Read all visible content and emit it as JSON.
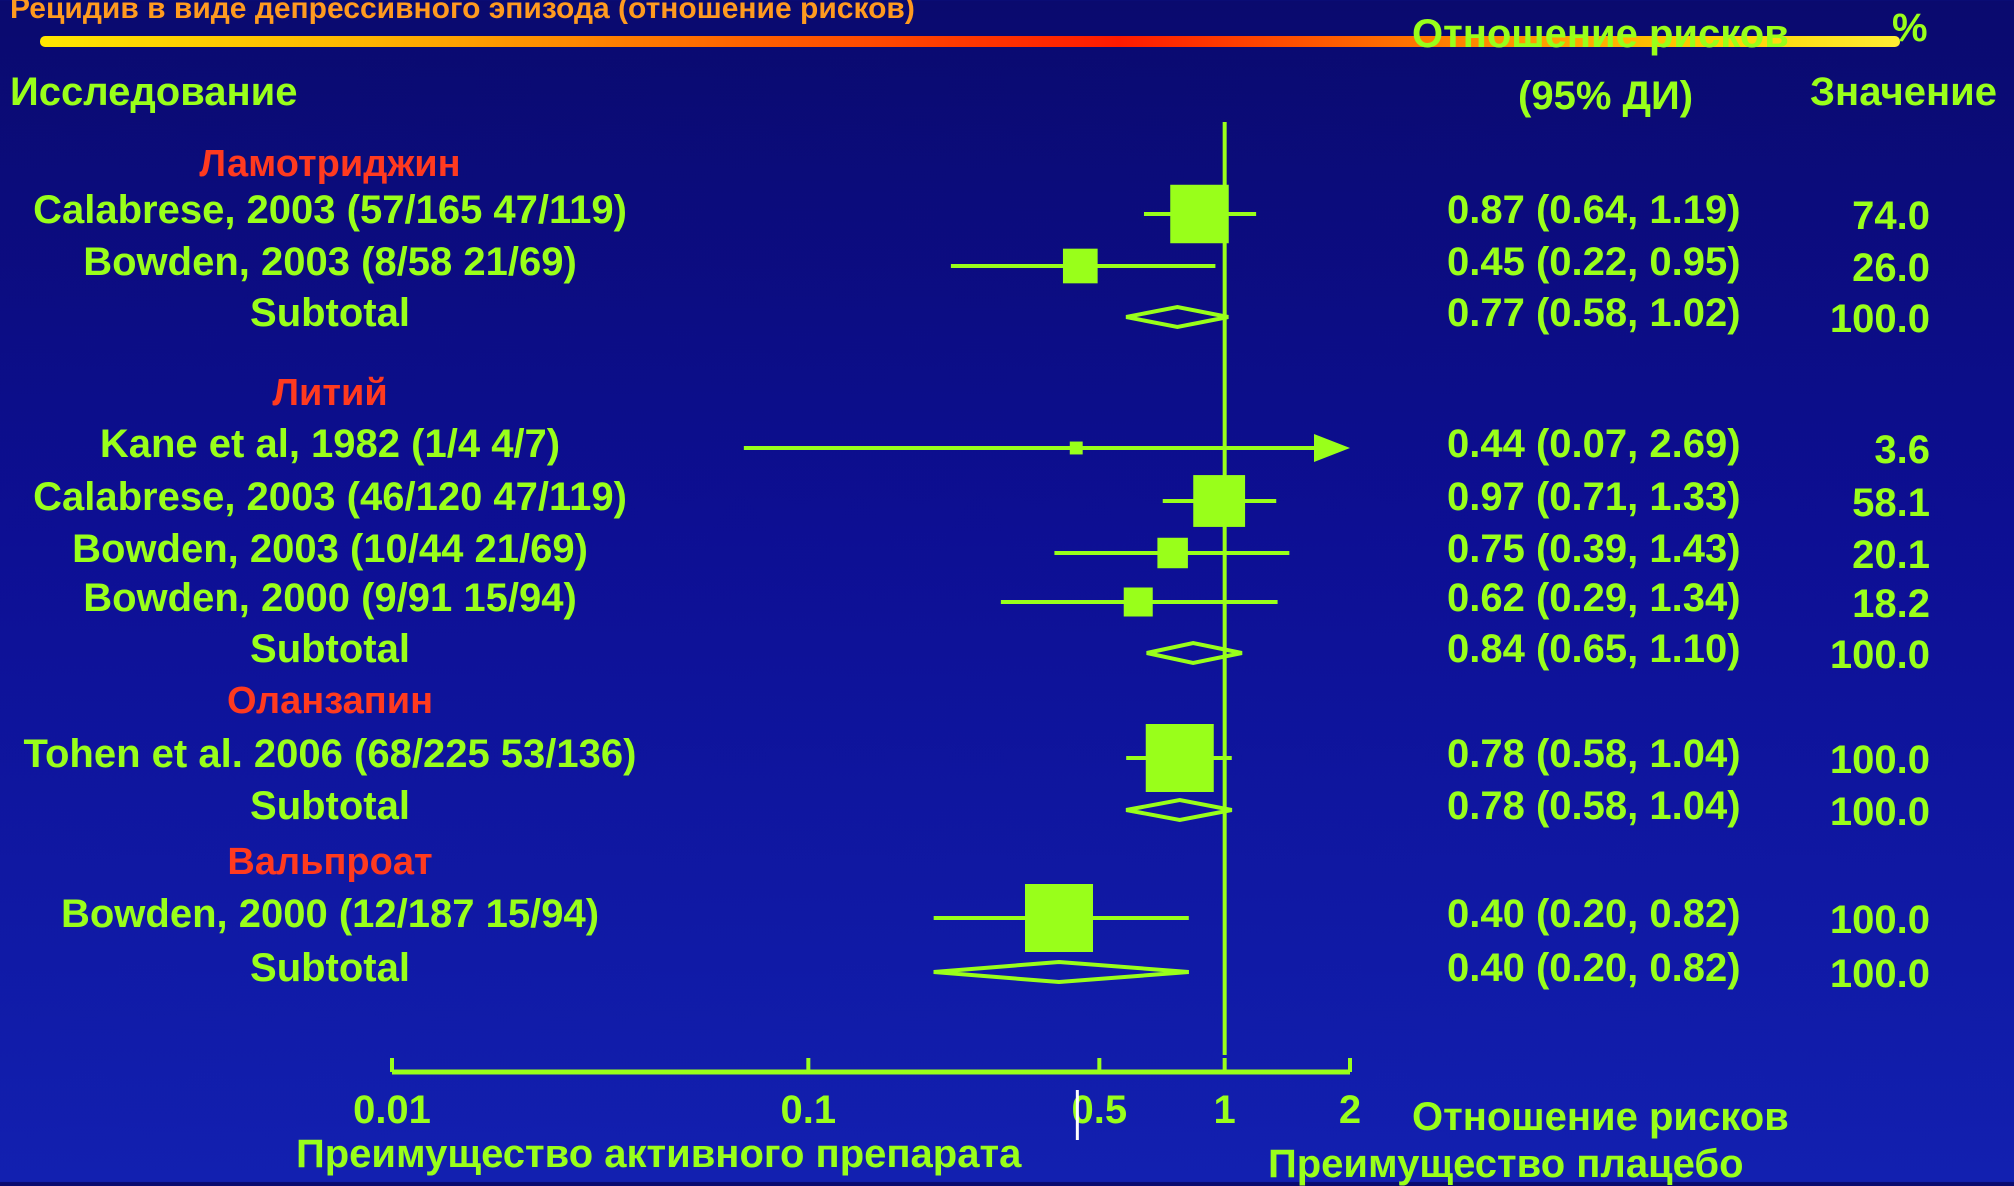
{
  "title": "Рецидив в виде депрессивного эпизода (отношение рисков)",
  "headers": {
    "study": "Исследование",
    "rr_line1": "Отношение рисков",
    "rr_line2": "(95% ДИ)",
    "pct_line1": "%",
    "pct_line2": "Значение"
  },
  "axis": {
    "label": "Отношение рисков",
    "favours_left": "Преимущество активного препарата",
    "favours_right": "Преимущество плацебо"
  },
  "colors": {
    "background": "#0d0f93",
    "marker": "#99ff1a",
    "group_title": "#ff3a1f",
    "title_text": "#ff9a1f"
  },
  "chart_data": {
    "type": "forest",
    "x_scale": "log",
    "xlim": [
      0.01,
      2
    ],
    "reference_line": 1,
    "ticks": [
      {
        "value": 0.01,
        "label": "0.01"
      },
      {
        "value": 0.1,
        "label": "0.1"
      },
      {
        "value": 0.5,
        "label": "0.5"
      },
      {
        "value": 1,
        "label": "1"
      },
      {
        "value": 2,
        "label": "2"
      }
    ],
    "rows": [
      {
        "kind": "group",
        "label": "Ламотриджин"
      },
      {
        "kind": "study",
        "label": "Calabrese, 2003 (57/165 47/119)",
        "rr": 0.87,
        "lo": 0.64,
        "hi": 1.19,
        "weight": 74.0,
        "text": "0.87 (0.64, 1.19)",
        "pct": "74.0"
      },
      {
        "kind": "study",
        "label": "Bowden, 2003 (8/58 21/69)",
        "rr": 0.45,
        "lo": 0.22,
        "hi": 0.95,
        "weight": 26.0,
        "text": "0.45 (0.22, 0.95)",
        "pct": "26.0"
      },
      {
        "kind": "subtotal",
        "label": "Subtotal",
        "rr": 0.77,
        "lo": 0.58,
        "hi": 1.02,
        "text": "0.77 (0.58, 1.02)",
        "pct": "100.0"
      },
      {
        "kind": "group",
        "label": "Литий"
      },
      {
        "kind": "study",
        "label": "Kane et al, 1982 (1/4 4/7)",
        "rr": 0.44,
        "lo": 0.07,
        "hi": 2.69,
        "weight": 3.6,
        "text": "0.44 (0.07, 2.69)",
        "pct": "3.6"
      },
      {
        "kind": "study",
        "label": "Calabrese, 2003 (46/120 47/119)",
        "rr": 0.97,
        "lo": 0.71,
        "hi": 1.33,
        "weight": 58.1,
        "text": "0.97 (0.71, 1.33)",
        "pct": "58.1"
      },
      {
        "kind": "study",
        "label": "Bowden, 2003 (10/44 21/69)",
        "rr": 0.75,
        "lo": 0.39,
        "hi": 1.43,
        "weight": 20.1,
        "text": "0.75 (0.39, 1.43)",
        "pct": "20.1"
      },
      {
        "kind": "study",
        "label": "Bowden, 2000 (9/91 15/94)",
        "rr": 0.62,
        "lo": 0.29,
        "hi": 1.34,
        "weight": 18.2,
        "text": "0.62 (0.29, 1.34)",
        "pct": "18.2"
      },
      {
        "kind": "subtotal",
        "label": "Subtotal",
        "rr": 0.84,
        "lo": 0.65,
        "hi": 1.1,
        "text": "0.84 (0.65, 1.10)",
        "pct": "100.0"
      },
      {
        "kind": "group",
        "label": "Оланзапин"
      },
      {
        "kind": "study",
        "label": "Tohen et al. 2006 (68/225 53/136)",
        "rr": 0.78,
        "lo": 0.58,
        "hi": 1.04,
        "weight": 100.0,
        "text": "0.78 (0.58, 1.04)",
        "pct": "100.0"
      },
      {
        "kind": "subtotal",
        "label": "Subtotal",
        "rr": 0.78,
        "lo": 0.58,
        "hi": 1.04,
        "text": "0.78 (0.58, 1.04)",
        "pct": "100.0"
      },
      {
        "kind": "group",
        "label": "Вальпроат"
      },
      {
        "kind": "study",
        "label": "Bowden, 2000 (12/187 15/94)",
        "rr": 0.4,
        "lo": 0.2,
        "hi": 0.82,
        "weight": 100.0,
        "text": "0.40 (0.20, 0.82)",
        "pct": "100.0"
      },
      {
        "kind": "subtotal",
        "label": "Subtotal",
        "rr": 0.4,
        "lo": 0.2,
        "hi": 0.82,
        "text": "0.40 (0.20, 0.82)",
        "pct": "100.0"
      }
    ]
  }
}
